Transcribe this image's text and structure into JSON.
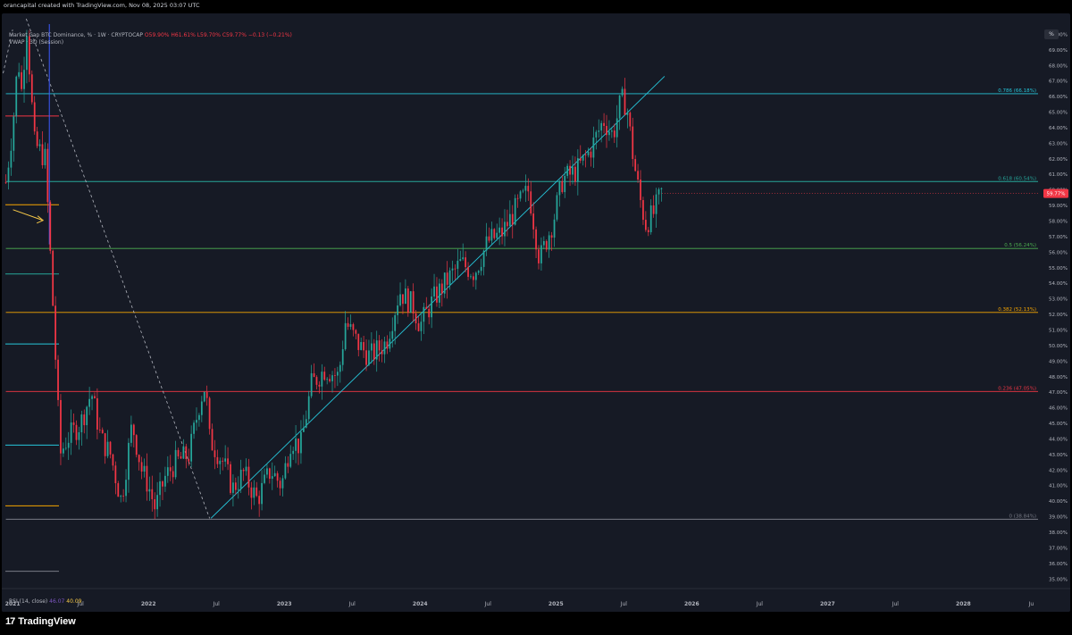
{
  "header": {
    "created_line": "orancapital created with TradingView.com, Nov 08, 2025 03:07 UTC",
    "symbol": "Market Cap BTC Dominance, % · 1W · CRYPTOCAP",
    "ohlc": "O59.90% H61.61% L59.70% C59.77% −0.13 (−0.21%)",
    "vwap_label": "VWAP · 3D (Session)",
    "pct_button": "%"
  },
  "rsi": {
    "label": "RSI (14, close)",
    "value_1": "46.07",
    "value_2": "40.09"
  },
  "branding": {
    "logo": "17",
    "name": "TradingView"
  },
  "colors": {
    "background": "#161a25",
    "up": "#26a69a",
    "down": "#f23645",
    "fib_0786": "#26c6da",
    "fib_0618": "#26a69a",
    "fib_05": "#4caf50",
    "fib_0382": "#f7a600",
    "fib_0236": "#f23645",
    "fib_0": "#787b86",
    "trendline": "#26c6da",
    "annotation_arrow": "#f7c948"
  },
  "chart_data": {
    "type": "candlestick",
    "y_unit": "%",
    "ylim": [
      34.5,
      71.0
    ],
    "x_ticks": [
      "2021",
      "Jul",
      "2022",
      "Jul",
      "2023",
      "Jul",
      "2024",
      "Jul",
      "2025",
      "Jul",
      "2026",
      "Jul",
      "2027",
      "Jul",
      "2028",
      "Ju"
    ],
    "y_ticks": [
      "70.00%",
      "69.00%",
      "68.00%",
      "67.00%",
      "66.00%",
      "65.00%",
      "64.00%",
      "63.00%",
      "62.00%",
      "61.00%",
      "60.00%",
      "59.00%",
      "58.00%",
      "57.00%",
      "56.00%",
      "55.00%",
      "54.00%",
      "53.00%",
      "52.00%",
      "51.00%",
      "50.00%",
      "49.00%",
      "48.00%",
      "47.00%",
      "46.00%",
      "45.00%",
      "44.00%",
      "43.00%",
      "42.00%",
      "41.00%",
      "40.00%",
      "39.00%",
      "38.00%",
      "37.00%",
      "36.00%",
      "35.00%"
    ],
    "y_tick_values": [
      70,
      69,
      68,
      67,
      66,
      65,
      64,
      63,
      62,
      61,
      60,
      59,
      58,
      57,
      56,
      55,
      54,
      53,
      52,
      51,
      50,
      49,
      48,
      47,
      46,
      45,
      44,
      43,
      42,
      41,
      40,
      39,
      38,
      37,
      36,
      35
    ],
    "last_price_label": "59.77%",
    "last_price": 59.77,
    "fib_levels": [
      {
        "label": "0.786 (66.18%)",
        "value": 66.18,
        "color": "#26c6da"
      },
      {
        "label": "0.618 (60.54%)",
        "value": 60.54,
        "color": "#26a69a"
      },
      {
        "label": "0.5 (56.24%)",
        "value": 56.24,
        "color": "#4caf50"
      },
      {
        "label": "0.382 (52.13%)",
        "value": 52.13,
        "color": "#f7a600"
      },
      {
        "label": "0.236 (47.05%)",
        "value": 47.05,
        "color": "#f23645"
      },
      {
        "label": "0 (38.84%)",
        "value": 38.84,
        "color": "#787b86"
      }
    ],
    "trendline": {
      "from": [
        2022.46,
        38.9
      ],
      "to": [
        2025.8,
        67.3
      ]
    },
    "vertical_line_x": 2021.27,
    "diagonal_dashed": {
      "from": [
        2021.1,
        71.0
      ],
      "to": [
        2022.45,
        38.9
      ]
    },
    "left_dashed": {
      "from": [
        2020.93,
        67.5
      ],
      "to": [
        2021.0,
        70.3
      ]
    },
    "annotation_arrow": {
      "from": [
        2021.2,
        58.5
      ],
      "to": [
        2021.25,
        58.1
      ]
    },
    "side_stubs": [
      {
        "value": 64.75,
        "color": "#f23645"
      },
      {
        "value": 59.05,
        "color": "#f7a600"
      },
      {
        "value": 54.6,
        "color": "#26a69a"
      },
      {
        "value": 50.1,
        "color": "#26c6da"
      },
      {
        "value": 43.6,
        "color": "#26c6da"
      },
      {
        "value": 39.7,
        "color": "#f7a600"
      },
      {
        "value": 35.5,
        "color": "#787b86"
      }
    ],
    "anchors": [
      [
        2020.95,
        60.5
      ],
      [
        2021.0,
        64.0
      ],
      [
        2021.04,
        68.5
      ],
      [
        2021.07,
        66.0
      ],
      [
        2021.1,
        71.0
      ],
      [
        2021.16,
        63.0
      ],
      [
        2021.24,
        62.0
      ],
      [
        2021.3,
        52.0
      ],
      [
        2021.35,
        43.0
      ],
      [
        2021.4,
        44.0
      ],
      [
        2021.5,
        45.0
      ],
      [
        2021.58,
        47.0
      ],
      [
        2021.65,
        44.0
      ],
      [
        2021.72,
        43.0
      ],
      [
        2021.8,
        40.0
      ],
      [
        2021.88,
        45.0
      ],
      [
        2021.95,
        42.0
      ],
      [
        2022.0,
        41.0
      ],
      [
        2022.05,
        39.5
      ],
      [
        2022.12,
        41.5
      ],
      [
        2022.2,
        42.5
      ],
      [
        2022.3,
        43.0
      ],
      [
        2022.38,
        46.5
      ],
      [
        2022.42,
        47.5
      ],
      [
        2022.45,
        44.0
      ],
      [
        2022.55,
        42.5
      ],
      [
        2022.62,
        40.8
      ],
      [
        2022.7,
        41.8
      ],
      [
        2022.8,
        40.1
      ],
      [
        2022.9,
        42.0
      ],
      [
        2022.98,
        41.0
      ],
      [
        2023.05,
        44.0
      ],
      [
        2023.12,
        43.5
      ],
      [
        2023.2,
        47.5
      ],
      [
        2023.3,
        48.5
      ],
      [
        2023.4,
        48.0
      ],
      [
        2023.45,
        51.5
      ],
      [
        2023.55,
        50.0
      ],
      [
        2023.63,
        49.3
      ],
      [
        2023.75,
        50.2
      ],
      [
        2023.85,
        53.5
      ],
      [
        2023.95,
        52.5
      ],
      [
        2024.0,
        51.3
      ],
      [
        2024.1,
        53.0
      ],
      [
        2024.2,
        54.2
      ],
      [
        2024.3,
        55.3
      ],
      [
        2024.4,
        54.7
      ],
      [
        2024.5,
        56.7
      ],
      [
        2024.6,
        57.2
      ],
      [
        2024.72,
        59.0
      ],
      [
        2024.8,
        60.0
      ],
      [
        2024.88,
        55.5
      ],
      [
        2024.98,
        58.0
      ],
      [
        2025.05,
        60.7
      ],
      [
        2025.15,
        61.2
      ],
      [
        2025.25,
        62.5
      ],
      [
        2025.35,
        64.5
      ],
      [
        2025.42,
        63.5
      ],
      [
        2025.48,
        65.8
      ],
      [
        2025.52,
        65.5
      ],
      [
        2025.57,
        62.0
      ],
      [
        2025.62,
        59.4
      ],
      [
        2025.66,
        57.8
      ],
      [
        2025.72,
        58.5
      ],
      [
        2025.78,
        59.9
      ]
    ],
    "x_range": [
      2020.92,
      2028.55
    ]
  }
}
